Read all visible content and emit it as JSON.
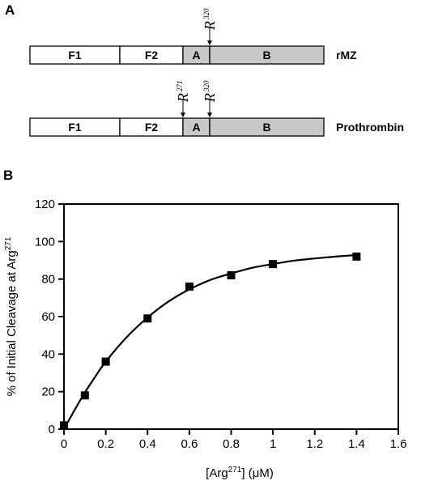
{
  "figure": {
    "panel_a_label": "A",
    "panel_b_label": "B"
  },
  "diagram": {
    "constructs": [
      {
        "name": "rMZ",
        "segments": [
          {
            "label": "F1",
            "fill": "#ffffff"
          },
          {
            "label": "F2",
            "fill": "#ffffff"
          },
          {
            "label": "A",
            "fill": "#c8c8c8"
          },
          {
            "label": "B",
            "fill": "#c8c8c8"
          }
        ],
        "sites": [
          {
            "letter": "R",
            "number": "320"
          }
        ]
      },
      {
        "name": "Prothrombin",
        "segments": [
          {
            "label": "F1",
            "fill": "#ffffff"
          },
          {
            "label": "F2",
            "fill": "#ffffff"
          },
          {
            "label": "A",
            "fill": "#c8c8c8"
          },
          {
            "label": "B",
            "fill": "#c8c8c8"
          }
        ],
        "sites": [
          {
            "letter": "R",
            "number": "271"
          },
          {
            "letter": "R",
            "number": "320"
          }
        ]
      }
    ]
  },
  "chart_data": {
    "type": "scatter",
    "title": "",
    "xlabel": {
      "prefix": "[Arg",
      "sup": "271",
      "suffix": "] (μM)"
    },
    "ylabel": {
      "prefix": "% of Initial Cleavage at Arg",
      "sup": "271"
    },
    "xlim": [
      0,
      1.6
    ],
    "ylim": [
      0,
      120
    ],
    "xticks": [
      0,
      0.2,
      0.4,
      0.6,
      0.8,
      1.0,
      1.2,
      1.4,
      1.6
    ],
    "xtick_labels": [
      "0",
      "0.2",
      "0.4",
      "0.6",
      "0.8",
      "1",
      "1.2",
      "1.4",
      "1.6"
    ],
    "yticks": [
      0,
      20,
      40,
      60,
      80,
      100,
      120
    ],
    "ytick_labels": [
      "0",
      "20",
      "40",
      "60",
      "80",
      "100",
      "120"
    ],
    "grid": false,
    "points": {
      "x": [
        0,
        0.1,
        0.2,
        0.4,
        0.6,
        0.8,
        1.0,
        1.4
      ],
      "y": [
        2,
        18,
        36,
        59,
        76,
        82,
        88,
        92
      ]
    },
    "fit_curve": {
      "x": [
        0,
        0.05,
        0.1,
        0.15,
        0.2,
        0.3,
        0.4,
        0.5,
        0.6,
        0.7,
        0.8,
        0.9,
        1.0,
        1.1,
        1.2,
        1.3,
        1.4
      ],
      "y": [
        0,
        10,
        19.5,
        28,
        36,
        49,
        59.5,
        68,
        74.5,
        79.5,
        83,
        86,
        88,
        89.8,
        91,
        92,
        92.8
      ]
    },
    "colors": {
      "marker": "#000000",
      "line": "#000000"
    }
  }
}
